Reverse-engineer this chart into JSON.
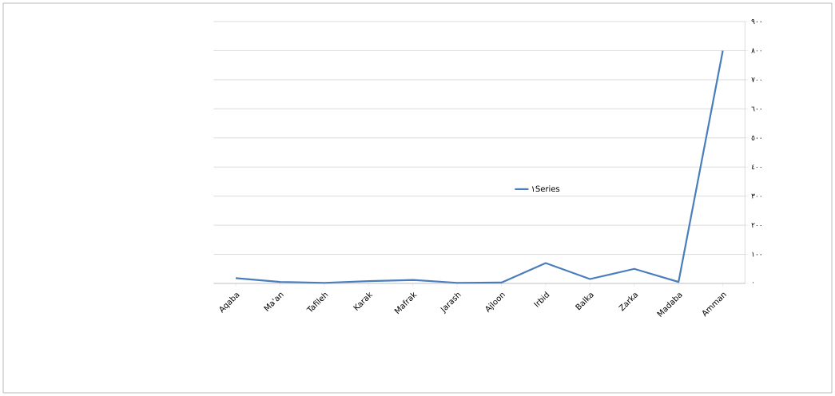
{
  "chart_data": {
    "type": "line",
    "categories": [
      "Aqaba",
      "Ma'an",
      "Tafileh",
      "Karak",
      "Mafrak",
      "Jarash",
      "Ajloon",
      "Irbid",
      "Balka",
      "Zarka",
      "Madaba",
      "Amman"
    ],
    "series": [
      {
        "name": "١Series",
        "color": "#4a7ebb",
        "values": [
          18,
          5,
          2,
          8,
          12,
          2,
          3,
          70,
          15,
          50,
          5,
          800
        ]
      }
    ],
    "ylim": [
      0,
      900
    ],
    "yticks": [
      {
        "value": 0,
        "label": "٠"
      },
      {
        "value": 100,
        "label": "١٠٠"
      },
      {
        "value": 200,
        "label": "٢٠٠"
      },
      {
        "value": 300,
        "label": "٣٠٠"
      },
      {
        "value": 400,
        "label": "٤٠٠"
      },
      {
        "value": 500,
        "label": "٥٠٠"
      },
      {
        "value": 600,
        "label": "٦٠٠"
      },
      {
        "value": 700,
        "label": "٧٠٠"
      },
      {
        "value": 800,
        "label": "٨٠٠"
      },
      {
        "value": 900,
        "label": "٩٠٠"
      }
    ],
    "grid": "y",
    "legend": "center",
    "marker": "none",
    "line_style": "solid"
  }
}
